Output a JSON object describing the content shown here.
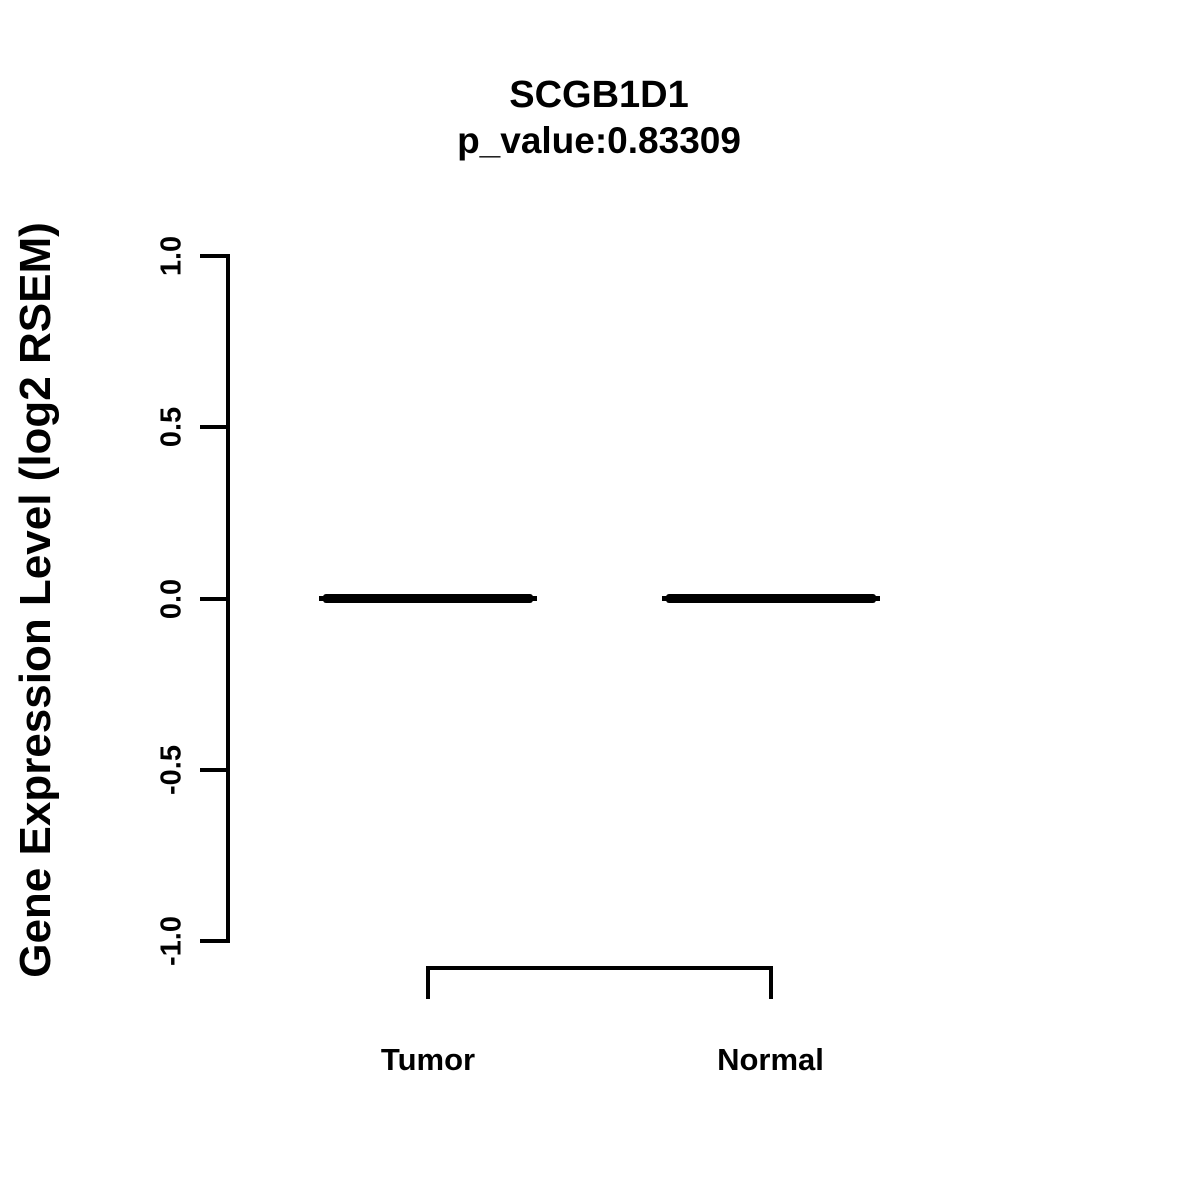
{
  "title": "SCGB1D1",
  "subtitle": "p_value:0.83309",
  "y_axis": {
    "label": "Gene Expression Level (log2 RSEM)",
    "ticks": [
      "-1.0",
      "-0.5",
      "0.0",
      "0.5",
      "1.0"
    ]
  },
  "chart_data": {
    "type": "boxplot",
    "title": "SCGB1D1",
    "subtitle": "p_value:0.83309",
    "gene": "SCGB1D1",
    "p_value": 0.83309,
    "categories": [
      "Tumor",
      "Normal"
    ],
    "series": [
      {
        "name": "Tumor",
        "median": 0.0,
        "q1": 0.0,
        "q3": 0.0,
        "whisker_low": 0.0,
        "whisker_high": 0.0
      },
      {
        "name": "Normal",
        "median": 0.0,
        "q1": 0.0,
        "q3": 0.0,
        "whisker_low": 0.0,
        "whisker_high": 0.0
      }
    ],
    "xlabel": "",
    "ylabel": "Gene Expression Level (log2 RSEM)",
    "ylim": [
      -1.0,
      1.0
    ],
    "yticks": [
      -1.0,
      -0.5,
      0.0,
      0.5,
      1.0
    ],
    "grid": false,
    "legend": null,
    "comparison_bracket": {
      "from": "Tumor",
      "to": "Normal"
    },
    "colors": {
      "foreground": "#000000",
      "background": "#ffffff"
    }
  }
}
